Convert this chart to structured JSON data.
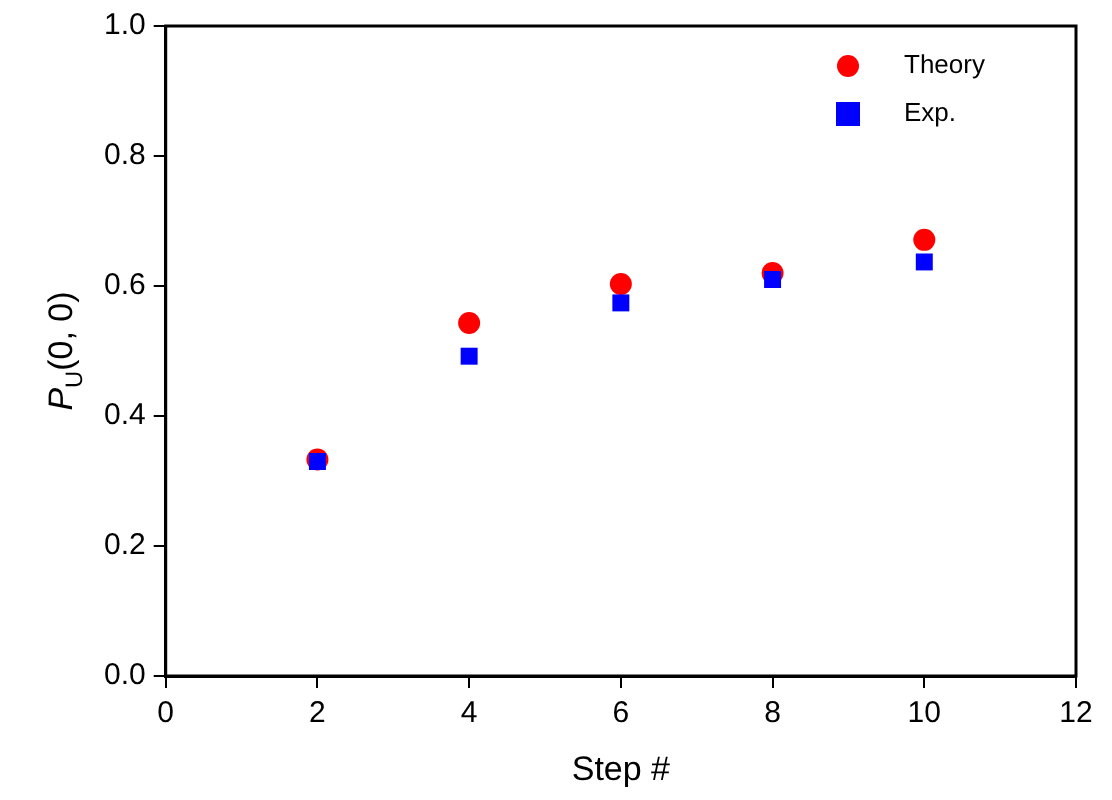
{
  "chart_data": {
    "type": "scatter",
    "xlabel": "Step #",
    "ylabel": "P$_{U}$(0, 0)",
    "x": [
      2,
      4,
      6,
      8,
      10
    ],
    "series": [
      {
        "name": "Theory",
        "color": "#ff0000",
        "marker": "circle",
        "values": [
          0.333,
          0.543,
          0.603,
          0.62,
          0.671
        ]
      },
      {
        "name": "Exp.",
        "color": "#0000ff",
        "marker": "square",
        "values": [
          0.33,
          0.492,
          0.574,
          0.61,
          0.637
        ]
      }
    ],
    "xlim": [
      0,
      12
    ],
    "xticks": [
      0,
      2,
      4,
      6,
      8,
      10,
      12
    ],
    "ylim": [
      0.0,
      1.0
    ],
    "yticks": [
      {
        "value": 0,
        "label": "0.0"
      },
      0.2,
      0.4,
      0.6,
      0.8,
      {
        "value": 1,
        "label": "1.0"
      }
    ],
    "grid": false,
    "legend": "top right"
  }
}
